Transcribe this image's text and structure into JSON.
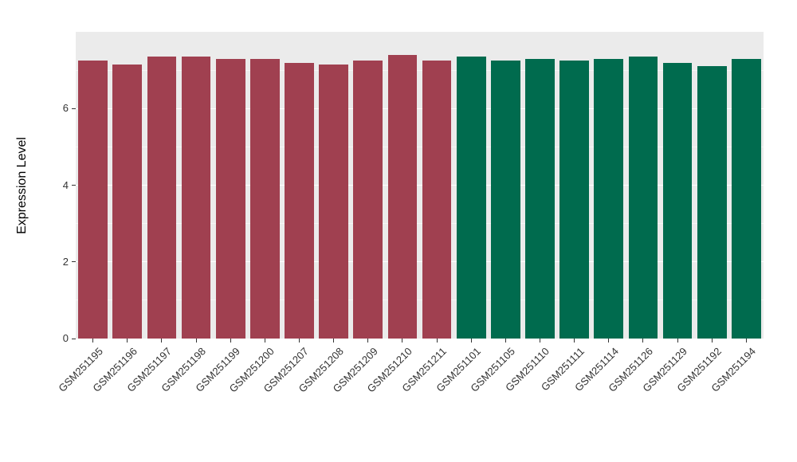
{
  "figure": {
    "background_color": "#FFFFFF",
    "panel_background_color": "#EBEBEB",
    "grid_major_color": "#FFFFFF",
    "grid_minor_color": "rgba(255,255,255,0.55)",
    "axis_text_color": "#333333",
    "axis_title_color": "#000000"
  },
  "chart_data": {
    "type": "bar",
    "title": "",
    "xlabel": "",
    "ylabel": "Expression Level",
    "ylim": [
      0,
      8.0
    ],
    "yticks": [
      0,
      2,
      4,
      6
    ],
    "yticks_minor": [
      1,
      3,
      5,
      7
    ],
    "grid": true,
    "legend_position": "none",
    "x_tick_rotation_deg": 45,
    "categories": [
      "GSM251195",
      "GSM251196",
      "GSM251197",
      "GSM251198",
      "GSM251199",
      "GSM251200",
      "GSM251207",
      "GSM251208",
      "GSM251209",
      "GSM251210",
      "GSM251211",
      "GSM251101",
      "GSM251105",
      "GSM251110",
      "GSM251111",
      "GSM251114",
      "GSM251126",
      "GSM251129",
      "GSM251192",
      "GSM251194"
    ],
    "values": [
      7.25,
      7.15,
      7.35,
      7.35,
      7.3,
      7.3,
      7.2,
      7.15,
      7.25,
      7.4,
      7.25,
      7.35,
      7.25,
      7.3,
      7.25,
      7.3,
      7.35,
      7.2,
      7.1,
      7.3
    ],
    "bar_colors": [
      "#A04050",
      "#A04050",
      "#A04050",
      "#A04050",
      "#A04050",
      "#A04050",
      "#A04050",
      "#A04050",
      "#A04050",
      "#A04050",
      "#A04050",
      "#006B4E",
      "#006B4E",
      "#006B4E",
      "#006B4E",
      "#006B4E",
      "#006B4E",
      "#006B4E",
      "#006B4E",
      "#006B4E"
    ],
    "group_colors": {
      "left_group": "#A04050",
      "right_group": "#006B4E"
    }
  }
}
